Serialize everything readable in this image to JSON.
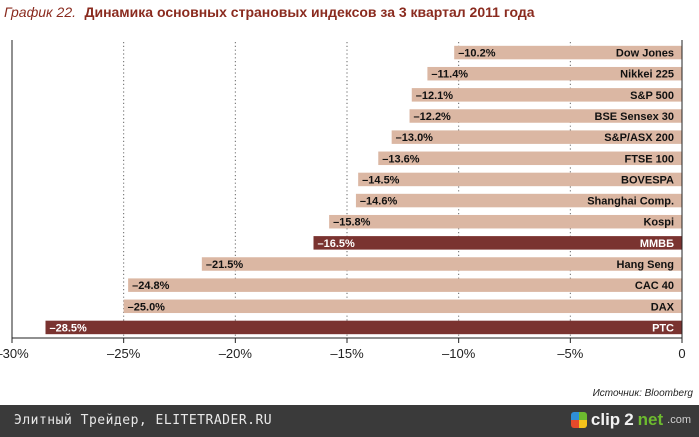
{
  "chart_data": {
    "type": "bar",
    "orientation": "horizontal",
    "title_prefix": "График 22.",
    "title": "Динамика основных страновых индексов за 3 квартал 2011 года",
    "categories": [
      "Dow Jones",
      "Nikkei 225",
      "S&P 500",
      "BSE Sensex 30",
      "S&P/ASX 200",
      "FTSE 100",
      "BOVESPA",
      "Shanghai Comp.",
      "Kospi",
      "ММВБ",
      "Hang Seng",
      "CAC 40",
      "DAX",
      "РТС"
    ],
    "values": [
      -10.2,
      -11.4,
      -12.1,
      -12.2,
      -13.0,
      -13.6,
      -14.5,
      -14.6,
      -15.8,
      -16.5,
      -21.5,
      -24.8,
      -25.0,
      -28.5
    ],
    "value_labels": [
      "–10.2%",
      "–11.4%",
      "–12.1%",
      "–12.2%",
      "–13.0%",
      "–13.6%",
      "–14.5%",
      "–14.6%",
      "–15.8%",
      "–16.5%",
      "–21.5%",
      "–24.8%",
      "–25.0%",
      "–28.5%"
    ],
    "highlighted": [
      false,
      false,
      false,
      false,
      false,
      false,
      false,
      false,
      false,
      true,
      false,
      false,
      false,
      true
    ],
    "xlim": [
      -30,
      0
    ],
    "xticks": [
      -30,
      -25,
      -20,
      -15,
      -10,
      -5,
      0
    ],
    "xtick_labels": [
      "–30%",
      "–25%",
      "–20%",
      "–15%",
      "–10%",
      "–5%",
      "0"
    ],
    "grid": "vertical dotted",
    "source": "Источник: Bloomberg",
    "colors": {
      "bar": "#dbb7a3",
      "highlight": "#7a3330",
      "title": "#8a2b1f"
    }
  },
  "footer": {
    "site_text": "Элитный Трейдер, ELITETRADER.RU",
    "logo_text": "clip",
    "logo_num": "2",
    "logo_net": "net",
    "logo_com": ".com"
  }
}
